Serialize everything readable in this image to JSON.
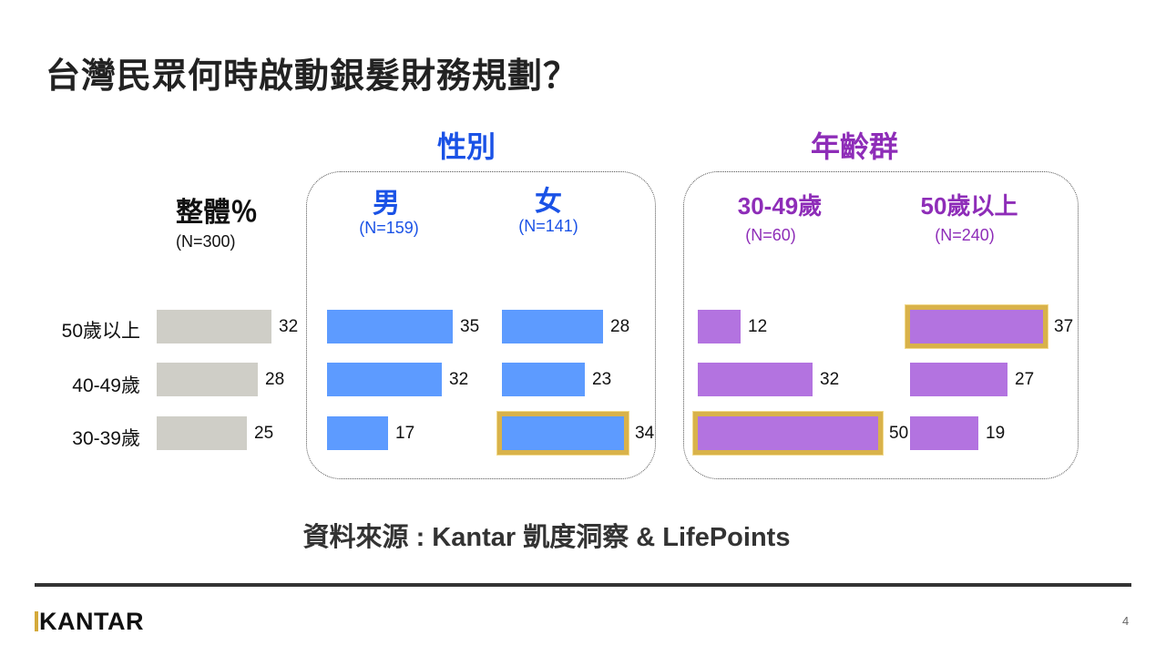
{
  "title": "台灣民眾何時啟動銀髮財務規劃？",
  "source": "資料來源 : Kantar 凱度洞察 & LifePoints",
  "logo": "KANTAR",
  "page_number": "4",
  "colors": {
    "overall": "#cfcec7",
    "gender": "#5d9bff",
    "age": "#b373e0",
    "highlight": "#d9b24a",
    "gender_title": "#1a52e6",
    "age_title": "#8e2db8"
  },
  "groups": {
    "overall": {
      "label": "整體％",
      "n": "(N=300)"
    },
    "gender": {
      "title": "性別",
      "male": {
        "label": "男",
        "n": "(N=159)"
      },
      "female": {
        "label": "女",
        "n": "(N=141)"
      }
    },
    "age": {
      "title": "年齡群",
      "a3049": {
        "label": "30-49歲",
        "n": "(N=60)"
      },
      "a50plus": {
        "label": "50歲以上",
        "n": "(N=240)"
      }
    }
  },
  "chart_data": {
    "type": "bar",
    "orientation": "horizontal",
    "unit": "%",
    "categories": [
      "50歲以上",
      "40-49歲",
      "30-39歲"
    ],
    "series": [
      {
        "name": "整體％",
        "values": [
          32,
          28,
          25
        ]
      },
      {
        "name": "男",
        "values": [
          35,
          32,
          17
        ]
      },
      {
        "name": "女",
        "values": [
          28,
          23,
          34
        ],
        "highlight_index": 2
      },
      {
        "name": "30-49歲",
        "values": [
          12,
          32,
          50
        ],
        "highlight_index": 2
      },
      {
        "name": "50歲以上",
        "values": [
          37,
          27,
          19
        ],
        "highlight_index": 0
      }
    ]
  }
}
